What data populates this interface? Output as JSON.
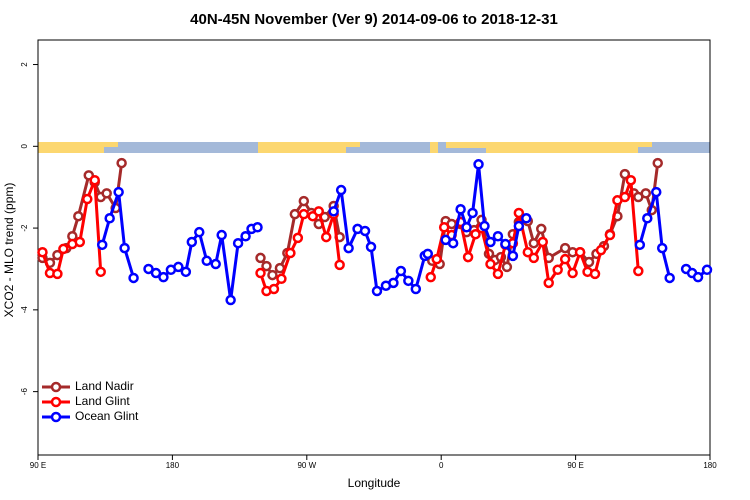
{
  "chart_data": {
    "type": "line",
    "title": "40N-45N November (Ver 9)   2014-09-06 to 2018-12-31",
    "x_label": "Longitude",
    "y_label": "XCO2 - MLO trend (ppm)",
    "xlim": [
      90,
      540
    ],
    "xticks": [
      {
        "value": 90,
        "label": "90 E"
      },
      {
        "value": 180,
        "label": "180"
      },
      {
        "value": 270,
        "label": "90 W"
      },
      {
        "value": 360,
        "label": "0"
      },
      {
        "value": 450,
        "label": "90 E"
      },
      {
        "value": 540,
        "label": "180"
      }
    ],
    "ylim": [
      -7.55,
      2.6
    ],
    "yticks": [
      -6,
      -4,
      -2,
      0,
      2
    ],
    "legend": "bottom-left",
    "series": [
      {
        "name": "Land Nadir",
        "color": "#a52a2a",
        "x": [
          93,
          98,
          103,
          109,
          113,
          117,
          124,
          128,
          132,
          136,
          142,
          146,
          null,
          239,
          243,
          247,
          252,
          257,
          262,
          268,
          273,
          278,
          282,
          288,
          292,
          null,
          354,
          359,
          363,
          367,
          373,
          377,
          382,
          387,
          392,
          396,
          400,
          404,
          408,
          412,
          418,
          422,
          427,
          432,
          443,
          448,
          453,
          459,
          464,
          469,
          473,
          478,
          483,
          489,
          492,
          497,
          501,
          505
        ],
        "values": [
          -2.73,
          -2.85,
          -2.66,
          -2.49,
          -2.2,
          -1.71,
          -0.71,
          -0.88,
          -1.24,
          -1.15,
          -1.51,
          -0.41,
          null,
          -2.73,
          -2.93,
          -3.15,
          -2.98,
          -2.61,
          -1.66,
          -1.34,
          -1.63,
          -1.9,
          -1.73,
          -1.46,
          -2.22,
          null,
          -2.8,
          -2.88,
          -1.83,
          -1.9,
          -1.9,
          -2.1,
          -2.05,
          -1.8,
          -2.63,
          -2.78,
          -2.71,
          -2.95,
          -2.15,
          -1.85,
          -1.83,
          -2.37,
          -2.02,
          -2.73,
          -2.49,
          -2.59,
          -2.59,
          -2.83,
          -2.63,
          -2.44,
          -2.15,
          -1.71,
          -0.68,
          -1.15,
          -1.24,
          -1.15,
          -1.56,
          -0.41
        ]
      },
      {
        "name": "Land Glint",
        "color": "#ff0000",
        "x": [
          93,
          98,
          103,
          107,
          113,
          118,
          123,
          128,
          132,
          null,
          239,
          243,
          248,
          253,
          259,
          264,
          268,
          274,
          278,
          283,
          288,
          292,
          null,
          353,
          357,
          362,
          367,
          373,
          378,
          383,
          387,
          393,
          398,
          403,
          408,
          412,
          418,
          422,
          428,
          432,
          438,
          443,
          448,
          453,
          458,
          463,
          467,
          473,
          478,
          483,
          487,
          492
        ],
        "values": [
          -2.59,
          -3.1,
          -3.12,
          -2.51,
          -2.39,
          -2.34,
          -1.29,
          -0.83,
          -3.07,
          null,
          -3.1,
          -3.54,
          -3.49,
          -3.24,
          -2.61,
          -2.24,
          -1.66,
          -1.71,
          -1.59,
          -2.22,
          -1.66,
          -2.9,
          null,
          -3.2,
          -2.76,
          -1.98,
          -2.17,
          -1.85,
          -2.71,
          -2.15,
          -2.0,
          -2.88,
          -3.12,
          -2.41,
          -2.37,
          -1.63,
          -2.59,
          -2.73,
          -2.34,
          -3.34,
          -3.02,
          -2.76,
          -3.1,
          -2.59,
          -3.07,
          -3.12,
          -2.54,
          -2.17,
          -1.32,
          -1.24,
          -0.83,
          -3.05
        ]
      },
      {
        "name": "Ocean Glint",
        "color": "#0000ff",
        "x": [
          133,
          138,
          144,
          148,
          154,
          null,
          164,
          169,
          174,
          179,
          184,
          189,
          193,
          198,
          203,
          209,
          213,
          219,
          224,
          229,
          233,
          237,
          null,
          288,
          293,
          298,
          304,
          309,
          313,
          317,
          323,
          328,
          333,
          338,
          343,
          349,
          351,
          null,
          363,
          368,
          373,
          377,
          381,
          385,
          389,
          393,
          398,
          403,
          408,
          412,
          417,
          null,
          493,
          498,
          504,
          508,
          513,
          null,
          524,
          528,
          532,
          538
        ],
        "values": [
          -2.41,
          -1.76,
          -1.12,
          -2.49,
          -3.22,
          null,
          -3.0,
          -3.1,
          -3.2,
          -3.02,
          -2.95,
          -3.07,
          -2.34,
          -2.1,
          -2.8,
          -2.88,
          -2.17,
          -3.76,
          -2.37,
          -2.2,
          -2.02,
          -1.98,
          null,
          -1.59,
          -1.07,
          -2.49,
          -2.02,
          -2.07,
          -2.46,
          -3.54,
          -3.41,
          -3.34,
          -3.05,
          -3.29,
          -3.49,
          -2.68,
          -2.63,
          null,
          -2.29,
          -2.37,
          -1.54,
          -1.98,
          -1.63,
          -0.44,
          -1.95,
          -2.34,
          -2.2,
          -2.39,
          -2.68,
          -1.95,
          -1.76,
          null,
          -2.41,
          -1.76,
          -1.12,
          -2.49,
          -3.22,
          null,
          -3.0,
          -3.1,
          -3.2,
          -3.02
        ]
      }
    ]
  }
}
